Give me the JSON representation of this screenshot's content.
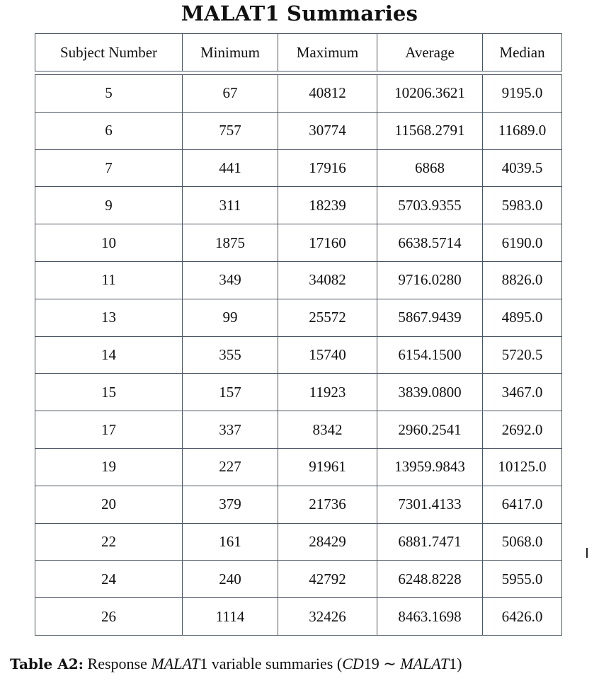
{
  "title": "MALAT1 Summaries",
  "table": {
    "headers": [
      "Subject Number",
      "Minimum",
      "Maximum",
      "Average",
      "Median"
    ],
    "rows": [
      [
        "5",
        "67",
        "40812",
        "10206.3621",
        "9195.0"
      ],
      [
        "6",
        "757",
        "30774",
        "11568.2791",
        "11689.0"
      ],
      [
        "7",
        "441",
        "17916",
        "6868",
        "4039.5"
      ],
      [
        "9",
        "311",
        "18239",
        "5703.9355",
        "5983.0"
      ],
      [
        "10",
        "1875",
        "17160",
        "6638.5714",
        "6190.0"
      ],
      [
        "11",
        "349",
        "34082",
        "9716.0280",
        "8826.0"
      ],
      [
        "13",
        "99",
        "25572",
        "5867.9439",
        "4895.0"
      ],
      [
        "14",
        "355",
        "15740",
        "6154.1500",
        "5720.5"
      ],
      [
        "15",
        "157",
        "11923",
        "3839.0800",
        "3467.0"
      ],
      [
        "17",
        "337",
        "8342",
        "2960.2541",
        "2692.0"
      ],
      [
        "19",
        "227",
        "91961",
        "13959.9843",
        "10125.0"
      ],
      [
        "20",
        "379",
        "21736",
        "7301.4133",
        "6417.0"
      ],
      [
        "22",
        "161",
        "28429",
        "6881.7471",
        "5068.0"
      ],
      [
        "24",
        "240",
        "42792",
        "6248.8228",
        "5955.0"
      ],
      [
        "26",
        "1114",
        "32426",
        "8463.1698",
        "6426.0"
      ]
    ]
  },
  "caption": {
    "label": "Table A2:",
    "text_before": "Response",
    "var_italic": "MALAT",
    "var_num": "1",
    "text_after": "variable summaries (",
    "formula_left_italic": "CD",
    "formula_left_num": "19",
    "tilde": "∼",
    "formula_right_italic": "MALAT",
    "formula_right_num": "1",
    "close": ")"
  }
}
